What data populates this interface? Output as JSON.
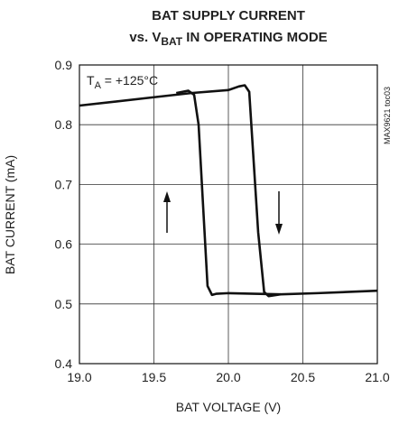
{
  "chart_data": {
    "type": "line",
    "title": [
      "BAT SUPPLY CURRENT",
      "vs. V",
      "BAT",
      " IN OPERATING MODE"
    ],
    "annotation": [
      "T",
      "A",
      " = +125°C"
    ],
    "side_note": "MAX9621 toc03",
    "xlabel": "BAT VOLTAGE (V)",
    "ylabel": "BAT CURRENT (mA)",
    "xlim": [
      19,
      21
    ],
    "ylim": [
      0.4,
      0.9
    ],
    "xticks": [
      {
        "value": 19,
        "label": "19.0"
      },
      19.5,
      {
        "value": 20,
        "label": "20.0"
      },
      20.5,
      {
        "value": 21,
        "label": "21.0"
      }
    ],
    "yticks": [
      0.4,
      0.5,
      0.6,
      0.7,
      0.8,
      0.9
    ],
    "grid": true,
    "color": "#111111",
    "series": [
      {
        "x": [
          19.0,
          19.5,
          19.75,
          20.0,
          20.07,
          20.11,
          20.14,
          20.2,
          20.24,
          20.27,
          20.35,
          20.6,
          21.0
        ],
        "values": [
          0.832,
          0.846,
          0.853,
          0.858,
          0.864,
          0.866,
          0.855,
          0.62,
          0.52,
          0.513,
          0.516,
          0.518,
          0.522
        ]
      },
      {
        "x": [
          20.35,
          20.0,
          19.92,
          19.89,
          19.86,
          19.8,
          19.77,
          19.73,
          19.65
        ],
        "values": [
          0.516,
          0.518,
          0.517,
          0.515,
          0.53,
          0.8,
          0.85,
          0.857,
          0.853
        ]
      }
    ]
  }
}
